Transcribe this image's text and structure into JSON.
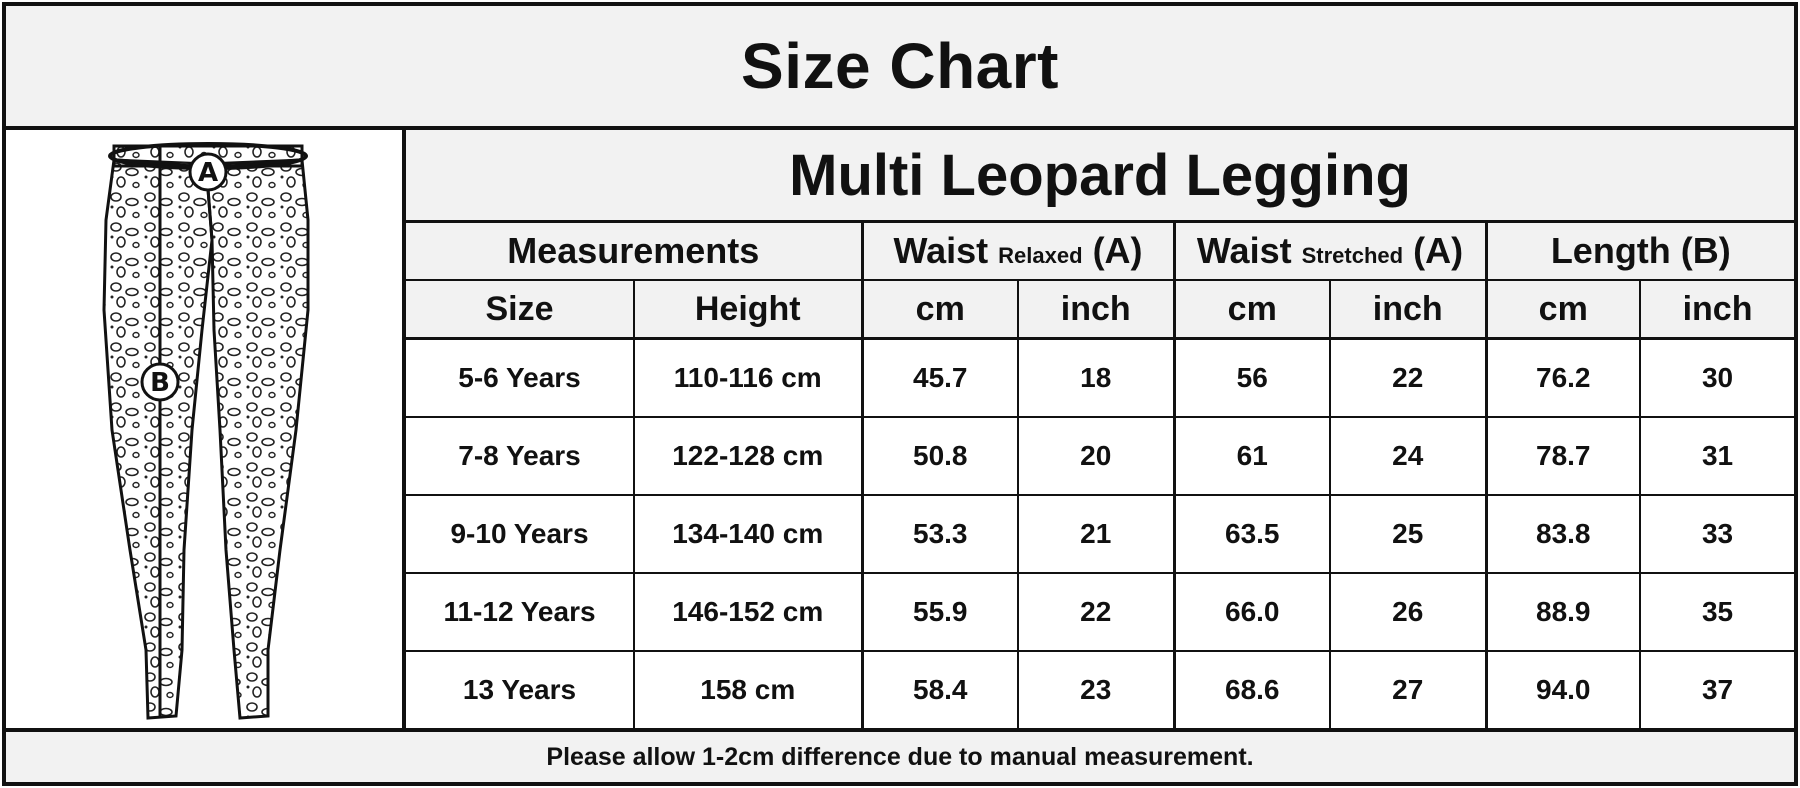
{
  "title": "Size Chart",
  "product_name": "Multi Leopard Legging",
  "illustration": {
    "waist_marker": "A",
    "length_marker": "B"
  },
  "column_groups": [
    {
      "label": "Measurements",
      "qualifier": "",
      "suffix": ""
    },
    {
      "label": "Waist",
      "qualifier": "Relaxed",
      "suffix": "(A)"
    },
    {
      "label": "Waist",
      "qualifier": "Stretched",
      "suffix": "(A)"
    },
    {
      "label": "Length (B)",
      "qualifier": "",
      "suffix": ""
    }
  ],
  "sub_headers": [
    "Size",
    "Height",
    "cm",
    "inch",
    "cm",
    "inch",
    "cm",
    "inch"
  ],
  "rows": [
    [
      "5-6 Years",
      "110-116 cm",
      "45.7",
      "18",
      "56",
      "22",
      "76.2",
      "30"
    ],
    [
      "7-8 Years",
      "122-128 cm",
      "50.8",
      "20",
      "61",
      "24",
      "78.7",
      "31"
    ],
    [
      "9-10 Years",
      "134-140 cm",
      "53.3",
      "21",
      "63.5",
      "25",
      "83.8",
      "33"
    ],
    [
      "11-12 Years",
      "146-152 cm",
      "55.9",
      "22",
      "66.0",
      "26",
      "88.9",
      "35"
    ],
    [
      "13 Years",
      "158 cm",
      "58.4",
      "23",
      "68.6",
      "27",
      "94.0",
      "37"
    ]
  ],
  "footer_note": "Please allow 1-2cm difference due to manual measurement."
}
